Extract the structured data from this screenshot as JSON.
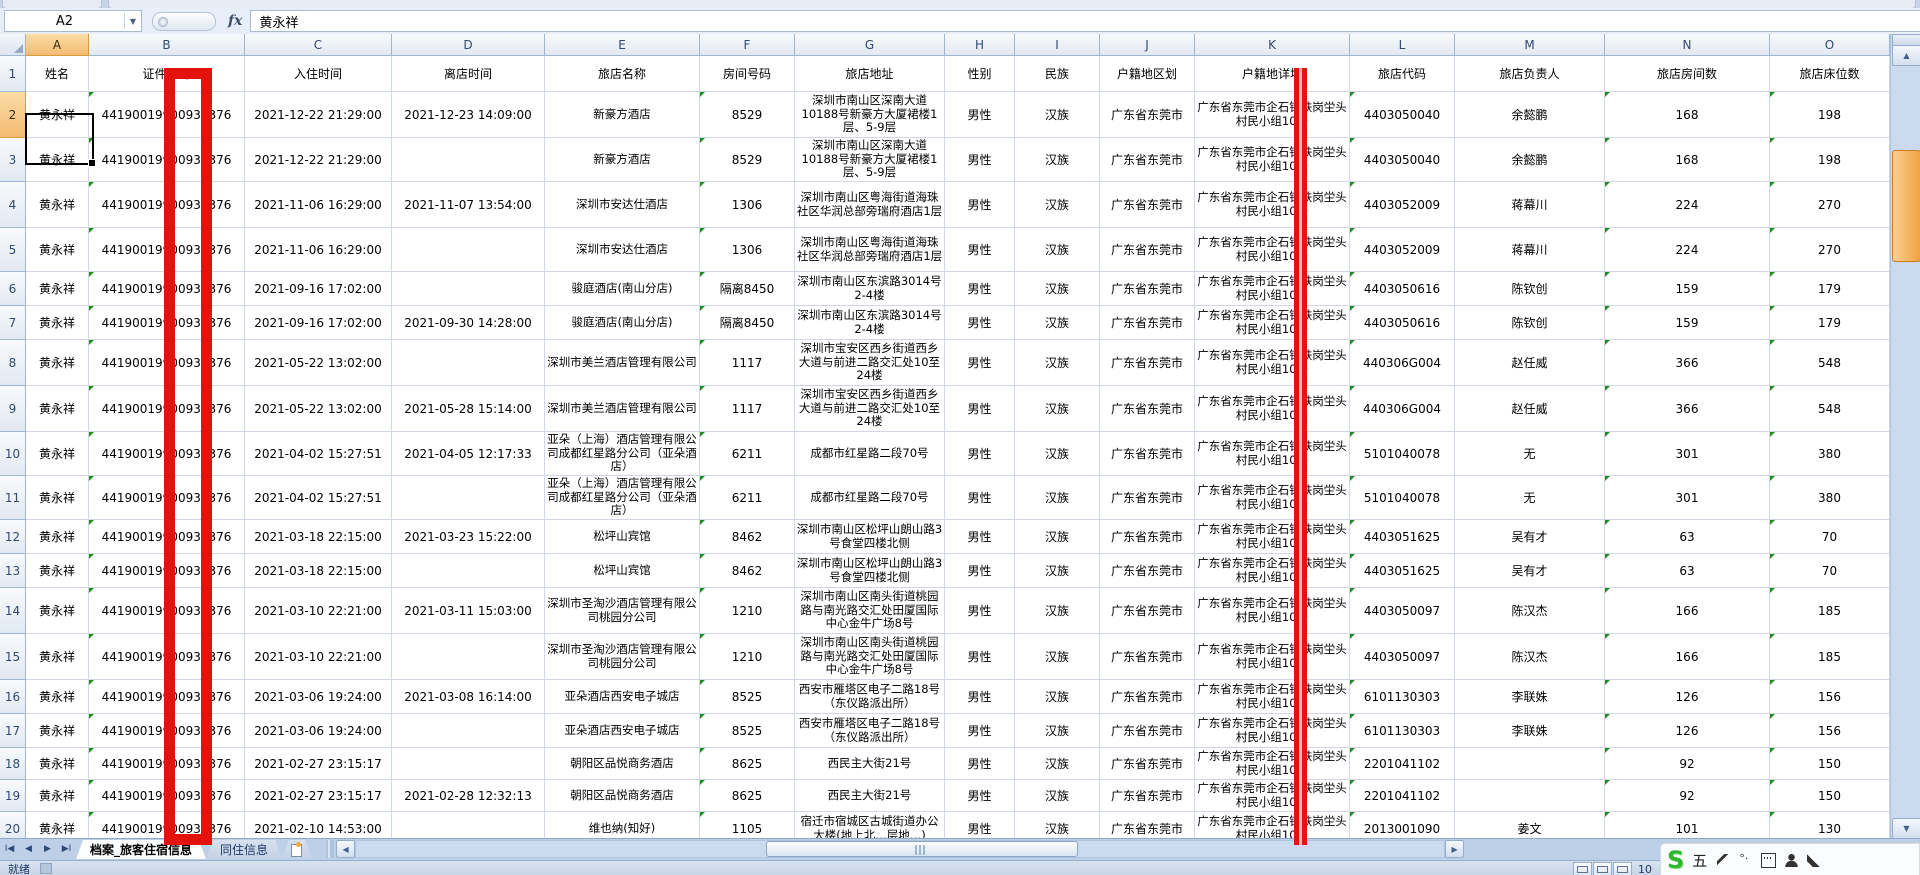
{
  "formula_bar": {
    "cell_ref": "A2",
    "fx_label": "fx",
    "formula_value": "黄永祥"
  },
  "annotations": {
    "highlight_color": "#E3120B"
  },
  "columns": [
    {
      "letter": "A",
      "label": "姓名"
    },
    {
      "letter": "B",
      "label": "证件号码"
    },
    {
      "letter": "C",
      "label": "入住时间"
    },
    {
      "letter": "D",
      "label": "离店时间"
    },
    {
      "letter": "E",
      "label": "旅店名称"
    },
    {
      "letter": "F",
      "label": "房间号码"
    },
    {
      "letter": "G",
      "label": "旅店地址"
    },
    {
      "letter": "H",
      "label": "性别"
    },
    {
      "letter": "I",
      "label": "民族"
    },
    {
      "letter": "J",
      "label": "户籍地区划"
    },
    {
      "letter": "K",
      "label": "户籍地详址"
    },
    {
      "letter": "L",
      "label": "旅店代码"
    },
    {
      "letter": "M",
      "label": "旅店负责人"
    },
    {
      "letter": "N",
      "label": "旅店房间数"
    },
    {
      "letter": "O",
      "label": "旅店床位数"
    }
  ],
  "rows": [
    {
      "n": 2,
      "cells": [
        "黄永祥",
        "44190019900930376",
        "2021-12-22 21:29:00",
        "2021-12-23 14:09:00",
        "新豪方酒店",
        "8529",
        "深圳市南山区深南大道10188号新豪方大厦裙楼1层、5-9层",
        "男性",
        "汉族",
        "广东省东莞市",
        "广东省东莞市企石镇铁岗坣头村民小组10号",
        "4403050040",
        "余懿鹏",
        "168",
        "198"
      ]
    },
    {
      "n": 3,
      "cells": [
        "黄永祥",
        "44190019900930376",
        "2021-12-22 21:29:00",
        "",
        "新豪方酒店",
        "8529",
        "深圳市南山区深南大道10188号新豪方大厦裙楼1层、5-9层",
        "男性",
        "汉族",
        "广东省东莞市",
        "广东省东莞市企石镇铁岗坣头村民小组10号",
        "4403050040",
        "余懿鹏",
        "168",
        "198"
      ]
    },
    {
      "n": 4,
      "cells": [
        "黄永祥",
        "44190019900930376",
        "2021-11-06 16:29:00",
        "2021-11-07 13:54:00",
        "深圳市安达仕酒店",
        "1306",
        "深圳市南山区粤海街道海珠社区华润总部旁瑞府酒店1层",
        "男性",
        "汉族",
        "广东省东莞市",
        "广东省东莞市企石镇铁岗坣头村民小组10号",
        "4403052009",
        "蒋幕川",
        "224",
        "270"
      ]
    },
    {
      "n": 5,
      "cells": [
        "黄永祥",
        "44190019900930376",
        "2021-11-06 16:29:00",
        "",
        "深圳市安达仕酒店",
        "1306",
        "深圳市南山区粤海街道海珠社区华润总部旁瑞府酒店1层",
        "男性",
        "汉族",
        "广东省东莞市",
        "广东省东莞市企石镇铁岗坣头村民小组10号",
        "4403052009",
        "蒋幕川",
        "224",
        "270"
      ]
    },
    {
      "n": 6,
      "cells": [
        "黄永祥",
        "44190019900930376",
        "2021-09-16 17:02:00",
        "",
        "骏庭酒店(南山分店)",
        "隔离8450",
        "深圳市南山区东滨路3014号2-4楼",
        "男性",
        "汉族",
        "广东省东莞市",
        "广东省东莞市企石镇铁岗坣头村民小组10号",
        "4403050616",
        "陈钦创",
        "159",
        "179"
      ]
    },
    {
      "n": 7,
      "cells": [
        "黄永祥",
        "44190019900930376",
        "2021-09-16 17:02:00",
        "2021-09-30 14:28:00",
        "骏庭酒店(南山分店)",
        "隔离8450",
        "深圳市南山区东滨路3014号2-4楼",
        "男性",
        "汉族",
        "广东省东莞市",
        "广东省东莞市企石镇铁岗坣头村民小组10号",
        "4403050616",
        "陈钦创",
        "159",
        "179"
      ]
    },
    {
      "n": 8,
      "cells": [
        "黄永祥",
        "44190019900930376",
        "2021-05-22 13:02:00",
        "",
        "深圳市美兰酒店管理有限公司",
        "1117",
        "深圳市宝安区西乡街道西乡大道与前进二路交汇处10至24楼",
        "男性",
        "汉族",
        "广东省东莞市",
        "广东省东莞市企石镇铁岗坣头村民小组10号",
        "440306G004",
        "赵任威",
        "366",
        "548"
      ]
    },
    {
      "n": 9,
      "cells": [
        "黄永祥",
        "44190019900930376",
        "2021-05-22 13:02:00",
        "2021-05-28 15:14:00",
        "深圳市美兰酒店管理有限公司",
        "1117",
        "深圳市宝安区西乡街道西乡大道与前进二路交汇处10至24楼",
        "男性",
        "汉族",
        "广东省东莞市",
        "广东省东莞市企石镇铁岗坣头村民小组10号",
        "440306G004",
        "赵任威",
        "366",
        "548"
      ]
    },
    {
      "n": 10,
      "cells": [
        "黄永祥",
        "44190019900930376",
        "2021-04-02 15:27:51",
        "2021-04-05 12:17:33",
        "亚朵（上海）酒店管理有限公司成都红星路分公司（亚朵酒店）",
        "6211",
        "成都市红星路二段70号",
        "男性",
        "汉族",
        "广东省东莞市",
        "广东省东莞市企石镇铁岗坣头村民小组10号",
        "5101040078",
        "无",
        "301",
        "380"
      ]
    },
    {
      "n": 11,
      "cells": [
        "黄永祥",
        "44190019900930376",
        "2021-04-02 15:27:51",
        "",
        "亚朵（上海）酒店管理有限公司成都红星路分公司（亚朵酒店）",
        "6211",
        "成都市红星路二段70号",
        "男性",
        "汉族",
        "广东省东莞市",
        "广东省东莞市企石镇铁岗坣头村民小组10号",
        "5101040078",
        "无",
        "301",
        "380"
      ]
    },
    {
      "n": 12,
      "cells": [
        "黄永祥",
        "44190019900930376",
        "2021-03-18 22:15:00",
        "2021-03-23 15:22:00",
        "松坪山宾馆",
        "8462",
        "深圳市南山区松坪山朗山路3号食堂四楼北侧",
        "男性",
        "汉族",
        "广东省东莞市",
        "广东省东莞市企石镇铁岗坣头村民小组10号",
        "4403051625",
        "吴有才",
        "63",
        "70"
      ]
    },
    {
      "n": 13,
      "cells": [
        "黄永祥",
        "44190019900930376",
        "2021-03-18 22:15:00",
        "",
        "松坪山宾馆",
        "8462",
        "深圳市南山区松坪山朗山路3号食堂四楼北侧",
        "男性",
        "汉族",
        "广东省东莞市",
        "广东省东莞市企石镇铁岗坣头村民小组10号",
        "4403051625",
        "吴有才",
        "63",
        "70"
      ]
    },
    {
      "n": 14,
      "cells": [
        "黄永祥",
        "44190019900930376",
        "2021-03-10 22:21:00",
        "2021-03-11 15:03:00",
        "深圳市圣淘沙酒店管理有限公司桃园分公司",
        "1210",
        "深圳市南山区南头街道桃园路与南光路交汇处田厦国际中心金牛广场8号",
        "男性",
        "汉族",
        "广东省东莞市",
        "广东省东莞市企石镇铁岗坣头村民小组10号",
        "4403050097",
        "陈汉杰",
        "166",
        "185"
      ]
    },
    {
      "n": 15,
      "cells": [
        "黄永祥",
        "44190019900930376",
        "2021-03-10 22:21:00",
        "",
        "深圳市圣淘沙酒店管理有限公司桃园分公司",
        "1210",
        "深圳市南山区南头街道桃园路与南光路交汇处田厦国际中心金牛广场8号",
        "男性",
        "汉族",
        "广东省东莞市",
        "广东省东莞市企石镇铁岗坣头村民小组10号",
        "4403050097",
        "陈汉杰",
        "166",
        "185"
      ]
    },
    {
      "n": 16,
      "cells": [
        "黄永祥",
        "44190019900930376",
        "2021-03-06 19:24:00",
        "2021-03-08 16:14:00",
        "亚朵酒店西安电子城店",
        "8525",
        "西安市雁塔区电子二路18号（东仪路派出所）",
        "男性",
        "汉族",
        "广东省东莞市",
        "广东省东莞市企石镇铁岗坣头村民小组10号",
        "6101130303",
        "李联姝",
        "126",
        "156"
      ]
    },
    {
      "n": 17,
      "cells": [
        "黄永祥",
        "44190019900930376",
        "2021-03-06 19:24:00",
        "",
        "亚朵酒店西安电子城店",
        "8525",
        "西安市雁塔区电子二路18号（东仪路派出所）",
        "男性",
        "汉族",
        "广东省东莞市",
        "广东省东莞市企石镇铁岗坣头村民小组10号",
        "6101130303",
        "李联姝",
        "126",
        "156"
      ]
    },
    {
      "n": 18,
      "cells": [
        "黄永祥",
        "44190019900930376",
        "2021-02-27 23:15:17",
        "",
        "朝阳区品悦商务酒店",
        "8625",
        "西民主大街21号",
        "男性",
        "汉族",
        "广东省东莞市",
        "广东省东莞市企石镇铁岗坣头村民小组10号",
        "2201041102",
        "",
        "92",
        "150"
      ]
    },
    {
      "n": 19,
      "cells": [
        "黄永祥",
        "44190019900930376",
        "2021-02-27 23:15:17",
        "2021-02-28 12:32:13",
        "朝阳区品悦商务酒店",
        "8625",
        "西民主大街21号",
        "男性",
        "汉族",
        "广东省东莞市",
        "广东省东莞市企石镇铁岗坣头村民小组10号",
        "2201041102",
        "",
        "92",
        "150"
      ]
    },
    {
      "n": 20,
      "cells": [
        "黄永祥",
        "44190019900930376",
        "2021-02-10 14:53:00",
        "",
        "维也纳(知好)",
        "1105",
        "宿迁市宿城区古城街道办公大楼(地上北…层地…)",
        "男性",
        "汉族",
        "广东省东莞市",
        "广东省东莞市企石镇铁岗坣头村民小组10号",
        "2013001090",
        "姜文",
        "101",
        "130"
      ]
    }
  ],
  "sheet_tabs": {
    "tabs": [
      "档案_旅客住宿信息",
      "同住信息"
    ],
    "active": 0
  },
  "status_bar": {
    "ready": "就绪",
    "zoom": "10"
  },
  "ime_bar": {
    "logo": "S",
    "mode": "五"
  }
}
